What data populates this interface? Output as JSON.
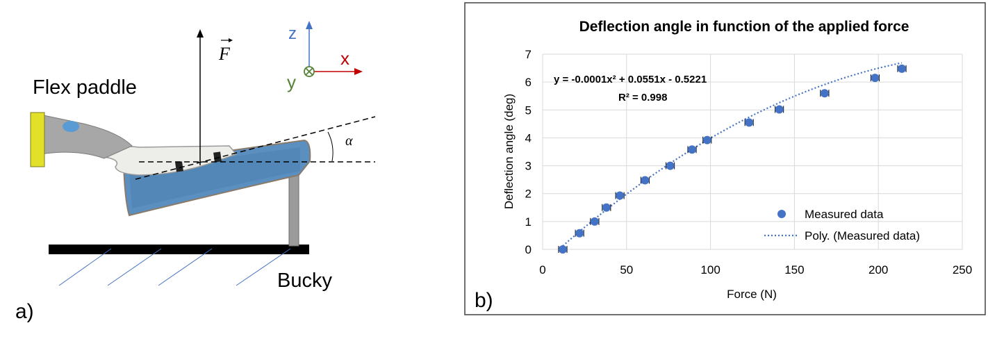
{
  "panel_a": {
    "label": "a)",
    "paddle_label": "Flex paddle",
    "bucky_label": "Bucky",
    "force_symbol": "F",
    "angle_symbol": "α",
    "axes": {
      "z": "z",
      "x": "x",
      "y": "y"
    },
    "colors": {
      "z_axis": "#4472c4",
      "x_axis": "#c00000",
      "y_axis": "#548235",
      "paddle_blue": "#5b8fbf",
      "hatch": "#4472c4"
    }
  },
  "panel_b": {
    "label": "b)",
    "equation": "y = -0.0001x² + 0.0551x - 0.5221",
    "r_squared": "R² = 0.998",
    "colors": {
      "marker": "#4472c4",
      "trendline": "#4472c4",
      "grid": "#d9d9d9",
      "border": "#404040"
    }
  },
  "chart_data": {
    "type": "scatter",
    "title": "Deflection angle in function of the applied force",
    "xlabel": "Force (N)",
    "ylabel": "Deflection angle (deg)",
    "xlim": [
      0,
      250
    ],
    "ylim": [
      0,
      7
    ],
    "xticks": [
      "0",
      "50",
      "100",
      "150",
      "200",
      "250"
    ],
    "yticks": [
      "0",
      "1",
      "2",
      "3",
      "4",
      "5",
      "6",
      "7"
    ],
    "grid": true,
    "legend_position": "bottom-right",
    "series": [
      {
        "name": "Measured data",
        "kind": "markers",
        "x": [
          12,
          22,
          31,
          38,
          46,
          61,
          76,
          89,
          98,
          123,
          141,
          168,
          198,
          214
        ],
        "y": [
          0.0,
          0.58,
          1.0,
          1.5,
          1.93,
          2.48,
          3.0,
          3.58,
          3.92,
          4.55,
          5.02,
          5.6,
          6.15,
          6.48
        ],
        "x_error": 2.5
      },
      {
        "name": "Poly. (Measured data)",
        "kind": "trendline",
        "coefficients": {
          "a": -0.0001,
          "b": 0.0551,
          "c": -0.5221
        }
      }
    ]
  }
}
